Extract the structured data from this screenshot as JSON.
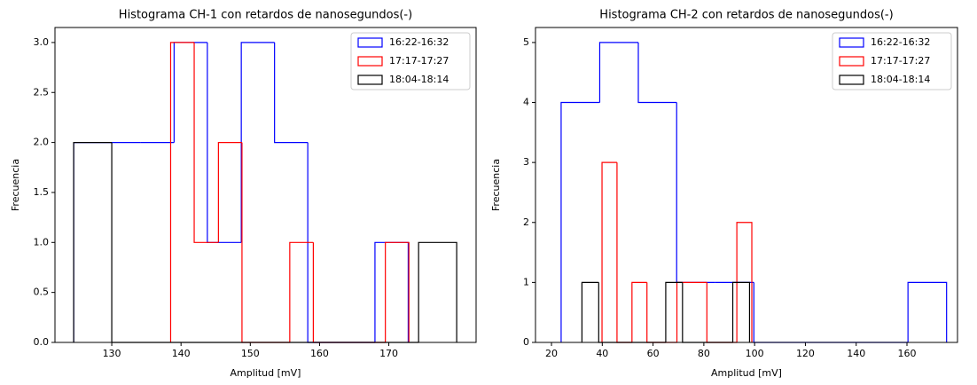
{
  "chart_data": [
    {
      "type": "histogram",
      "title": "Histograma CH-1 con retardos de nanosegundos(-)",
      "xlabel": "Amplitud [mV]",
      "ylabel": "Frecuencia",
      "xlim": [
        121.8,
        182.6
      ],
      "ylim": [
        0,
        3.15
      ],
      "xticks": [
        130,
        140,
        150,
        160,
        170
      ],
      "yticks": [
        {
          "value": 0,
          "label": "0.0"
        },
        {
          "value": 0.5,
          "label": "0.5"
        },
        {
          "value": 1,
          "label": "1.0"
        },
        {
          "value": 1.5,
          "label": "1.5"
        },
        {
          "value": 2,
          "label": "2.0"
        },
        {
          "value": 2.5,
          "label": "2.5"
        },
        {
          "value": 3,
          "label": "3.0"
        }
      ],
      "legend": "upper right",
      "series": [
        {
          "name": "16:22-16:32",
          "color": "#0000ff",
          "bins": [
            124.5,
            129.3,
            134.2,
            139.0,
            143.8,
            148.7,
            153.5,
            158.3,
            163.2,
            168.0,
            172.8
          ],
          "values": [
            2,
            2,
            2,
            3,
            1,
            3,
            2,
            0,
            0,
            1
          ]
        },
        {
          "name": "17:17-17:27",
          "color": "#ff0000",
          "bins": [
            138.5,
            141.9,
            145.4,
            148.8,
            152.3,
            155.7,
            159.1,
            162.6,
            166.0,
            169.5,
            172.9
          ],
          "values": [
            3,
            1,
            2,
            0,
            0,
            1,
            0,
            0,
            0,
            1
          ]
        },
        {
          "name": "18:04-18:14",
          "color": "#000000",
          "bins": [
            124.5,
            130.0,
            135.6,
            141.1,
            146.6,
            152.2,
            157.7,
            163.2,
            168.7,
            174.3,
            179.8
          ],
          "values": [
            2,
            0,
            0,
            0,
            0,
            0,
            0,
            0,
            0,
            1
          ]
        }
      ]
    },
    {
      "type": "histogram",
      "title": "Histograma CH-2 con retardos de nanosegundos(-)",
      "xlabel": "Amplitud [mV]",
      "ylabel": "Frecuencia",
      "xlim": [
        13.7,
        179.9
      ],
      "ylim": [
        0,
        5.25
      ],
      "xticks": [
        20,
        40,
        60,
        80,
        100,
        120,
        140,
        160
      ],
      "yticks": [
        0,
        1,
        2,
        3,
        4,
        5
      ],
      "legend": "upper right",
      "series": [
        {
          "name": "16:22-16:32",
          "color": "#0000ff",
          "bins": [
            23.8,
            39.0,
            54.2,
            69.3,
            84.5,
            99.7,
            114.9,
            130.1,
            145.2,
            160.4,
            175.6
          ],
          "values": [
            4,
            5,
            4,
            1,
            1,
            0,
            0,
            0,
            0,
            1
          ]
        },
        {
          "name": "17:17-17:27",
          "color": "#ff0000",
          "bins": [
            39.9,
            45.8,
            51.7,
            57.6,
            63.5,
            69.4,
            75.3,
            81.2,
            87.1,
            93.0,
            98.9
          ],
          "values": [
            3,
            0,
            1,
            0,
            0,
            1,
            1,
            0,
            0,
            2
          ]
        },
        {
          "name": "18:04-18:14",
          "color": "#000000",
          "bins": [
            32.0,
            38.6,
            45.2,
            51.8,
            58.4,
            65.0,
            71.6,
            78.2,
            84.8,
            91.4,
            98.0
          ],
          "values": [
            1,
            0,
            0,
            0,
            0,
            1,
            0,
            0,
            0,
            1
          ]
        }
      ]
    }
  ]
}
